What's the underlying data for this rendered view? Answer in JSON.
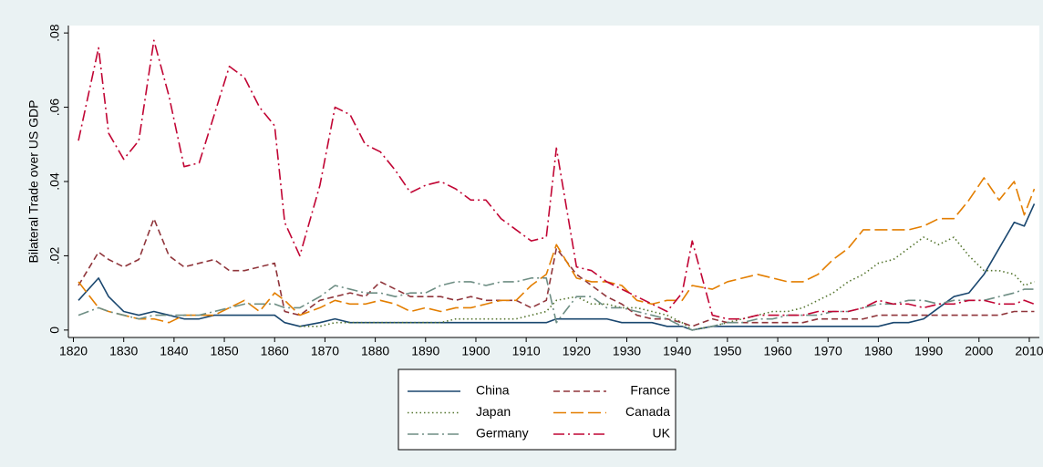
{
  "chart_data": {
    "type": "line",
    "y_label": "Bilateral Trade over US GDP",
    "x": [
      1821,
      1825,
      1827,
      1830,
      1833,
      1836,
      1839,
      1842,
      1845,
      1848,
      1851,
      1854,
      1857,
      1860,
      1862,
      1865,
      1869,
      1872,
      1875,
      1878,
      1881,
      1884,
      1887,
      1890,
      1893,
      1896,
      1899,
      1902,
      1905,
      1908,
      1911,
      1914,
      1916,
      1920,
      1923,
      1926,
      1929,
      1932,
      1935,
      1938,
      1941,
      1943,
      1947,
      1950,
      1953,
      1956,
      1959,
      1962,
      1965,
      1968,
      1971,
      1974,
      1977,
      1980,
      1983,
      1986,
      1989,
      1992,
      1995,
      1998,
      2001,
      2004,
      2007,
      2009,
      2011
    ],
    "series": [
      {
        "name": "China",
        "color": "#1a476f",
        "dash": "solid",
        "values": [
          0.008,
          0.014,
          0.009,
          0.005,
          0.004,
          0.005,
          0.004,
          0.003,
          0.003,
          0.004,
          0.004,
          0.004,
          0.004,
          0.004,
          0.002,
          0.001,
          0.002,
          0.003,
          0.002,
          0.002,
          0.002,
          0.002,
          0.002,
          0.002,
          0.002,
          0.002,
          0.002,
          0.002,
          0.002,
          0.002,
          0.002,
          0.002,
          0.003,
          0.003,
          0.003,
          0.003,
          0.002,
          0.002,
          0.002,
          0.001,
          0.001,
          0.0,
          0.001,
          0.001,
          0.001,
          0.001,
          0.001,
          0.001,
          0.001,
          0.001,
          0.001,
          0.001,
          0.001,
          0.001,
          0.002,
          0.002,
          0.003,
          0.006,
          0.009,
          0.01,
          0.015,
          0.022,
          0.029,
          0.028,
          0.034
        ]
      },
      {
        "name": "France",
        "color": "#90353b",
        "dash": "dash",
        "values": [
          0.012,
          0.021,
          0.019,
          0.017,
          0.019,
          0.03,
          0.02,
          0.017,
          0.018,
          0.019,
          0.016,
          0.016,
          0.017,
          0.018,
          0.005,
          0.004,
          0.008,
          0.009,
          0.01,
          0.009,
          0.013,
          0.011,
          0.009,
          0.009,
          0.009,
          0.008,
          0.009,
          0.008,
          0.008,
          0.008,
          0.006,
          0.008,
          0.022,
          0.015,
          0.012,
          0.009,
          0.007,
          0.004,
          0.003,
          0.003,
          0.002,
          0.001,
          0.003,
          0.002,
          0.002,
          0.002,
          0.002,
          0.002,
          0.002,
          0.003,
          0.003,
          0.003,
          0.003,
          0.004,
          0.004,
          0.004,
          0.004,
          0.004,
          0.004,
          0.004,
          0.004,
          0.004,
          0.005,
          0.005,
          0.005
        ]
      },
      {
        "name": "Japan",
        "color": "#55752f",
        "dash": "dot",
        "values": [
          null,
          null,
          null,
          null,
          null,
          null,
          null,
          null,
          null,
          null,
          null,
          null,
          null,
          null,
          null,
          0.001,
          0.001,
          0.002,
          0.002,
          0.002,
          0.002,
          0.002,
          0.002,
          0.002,
          0.002,
          0.003,
          0.003,
          0.003,
          0.003,
          0.003,
          0.004,
          0.005,
          0.008,
          0.009,
          0.007,
          0.007,
          0.006,
          0.006,
          0.005,
          0.004,
          0.002,
          0.0,
          0.001,
          0.002,
          0.003,
          0.004,
          0.005,
          0.005,
          0.006,
          0.008,
          0.01,
          0.013,
          0.015,
          0.018,
          0.019,
          0.022,
          0.025,
          0.023,
          0.025,
          0.02,
          0.016,
          0.016,
          0.015,
          0.012,
          0.013
        ]
      },
      {
        "name": "Canada",
        "color": "#e37e00",
        "dash": "longdash",
        "values": [
          0.013,
          0.006,
          0.005,
          0.004,
          0.003,
          0.003,
          0.002,
          0.004,
          0.004,
          0.004,
          0.006,
          0.008,
          0.005,
          0.01,
          0.008,
          0.004,
          0.006,
          0.008,
          0.007,
          0.007,
          0.008,
          0.007,
          0.005,
          0.006,
          0.005,
          0.006,
          0.006,
          0.007,
          0.008,
          0.008,
          0.012,
          0.015,
          0.023,
          0.014,
          0.013,
          0.013,
          0.012,
          0.008,
          0.007,
          0.008,
          0.008,
          0.012,
          0.011,
          0.013,
          0.014,
          0.015,
          0.014,
          0.013,
          0.013,
          0.015,
          0.019,
          0.022,
          0.027,
          0.027,
          0.027,
          0.027,
          0.028,
          0.03,
          0.03,
          0.035,
          0.041,
          0.035,
          0.04,
          0.031,
          0.038
        ]
      },
      {
        "name": "Germany",
        "color": "#6e8e84",
        "dash": "dashdot",
        "values": [
          0.004,
          0.006,
          0.005,
          0.004,
          0.003,
          0.004,
          0.004,
          0.004,
          0.004,
          0.005,
          0.006,
          0.007,
          0.007,
          0.007,
          0.006,
          0.006,
          0.009,
          0.012,
          0.011,
          0.01,
          0.01,
          0.009,
          0.01,
          0.01,
          0.012,
          0.013,
          0.013,
          0.012,
          0.013,
          0.013,
          0.014,
          0.014,
          0.002,
          0.009,
          0.009,
          0.006,
          0.006,
          0.005,
          0.004,
          0.003,
          0.001,
          0.0,
          0.001,
          0.002,
          0.002,
          0.003,
          0.003,
          0.004,
          0.004,
          0.004,
          0.005,
          0.005,
          0.006,
          0.007,
          0.007,
          0.008,
          0.008,
          0.007,
          0.008,
          0.008,
          0.008,
          0.009,
          0.01,
          0.011,
          0.011
        ]
      },
      {
        "name": "UK",
        "color": "#c10534",
        "dash": "dashdot",
        "values": [
          0.051,
          0.076,
          0.053,
          0.046,
          0.051,
          0.078,
          0.063,
          0.044,
          0.045,
          0.058,
          0.071,
          0.068,
          0.06,
          0.055,
          0.029,
          0.02,
          0.039,
          0.06,
          0.058,
          0.05,
          0.048,
          0.043,
          0.037,
          0.039,
          0.04,
          0.038,
          0.035,
          0.035,
          0.03,
          0.027,
          0.024,
          0.025,
          0.049,
          0.017,
          0.016,
          0.013,
          0.011,
          0.009,
          0.007,
          0.005,
          0.01,
          0.024,
          0.004,
          0.003,
          0.003,
          0.004,
          0.004,
          0.004,
          0.004,
          0.005,
          0.005,
          0.005,
          0.006,
          0.008,
          0.007,
          0.007,
          0.006,
          0.007,
          0.007,
          0.008,
          0.008,
          0.007,
          0.007,
          0.008,
          0.007
        ]
      }
    ],
    "xlim": [
      1819,
      2012
    ],
    "xticks": [
      1820,
      1830,
      1840,
      1850,
      1860,
      1870,
      1880,
      1890,
      1900,
      1910,
      1920,
      1930,
      1940,
      1950,
      1960,
      1970,
      1980,
      1990,
      2000,
      2010
    ],
    "ylim": [
      -0.002,
      0.082
    ],
    "yticks": [
      0,
      {
        "value": 0.02,
        "label": ".02"
      },
      {
        "value": 0.04,
        "label": ".04"
      },
      {
        "value": 0.06,
        "label": ".06"
      },
      {
        "value": 0.08,
        "label": ".08"
      }
    ],
    "legend": "bottom"
  }
}
